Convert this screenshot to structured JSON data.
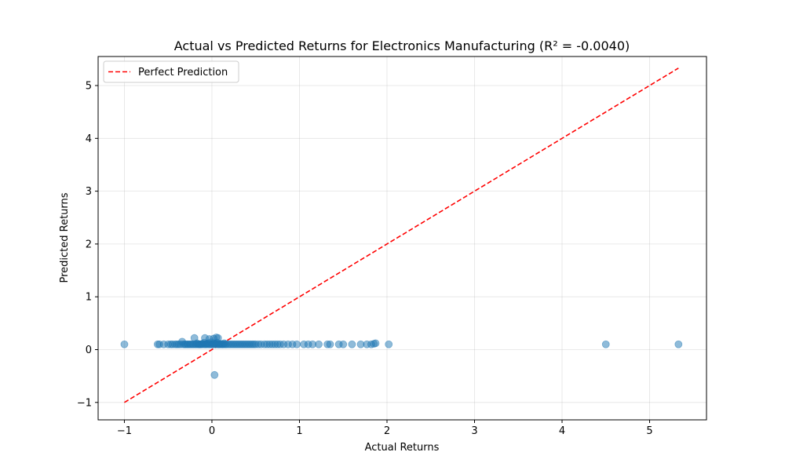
{
  "chart_data": {
    "type": "scatter",
    "title": "Actual vs Predicted Returns for Electronics Manufacturing (R² = -0.0040)",
    "xlabel": "Actual Returns",
    "ylabel": "Predicted Returns",
    "xlim": [
      -1.3,
      5.65
    ],
    "ylim": [
      -1.33,
      5.55
    ],
    "xticks": [
      -1,
      0,
      1,
      2,
      3,
      4,
      5
    ],
    "yticks": [
      -1,
      0,
      1,
      2,
      3,
      4,
      5
    ],
    "xtick_labels": [
      "−1",
      "0",
      "1",
      "2",
      "3",
      "4",
      "5"
    ],
    "ytick_labels": [
      "−1",
      "0",
      "1",
      "2",
      "3",
      "4",
      "5"
    ],
    "grid": true,
    "legend": {
      "position": "top-left",
      "entries": [
        "Perfect Prediction"
      ]
    },
    "reference_line": {
      "name": "Perfect Prediction",
      "style": "dashed",
      "color": "#ff0000",
      "x": [
        -1.0,
        5.33
      ],
      "y": [
        -1.0,
        5.33
      ]
    },
    "series": [
      {
        "marker_color": "#1f77b4",
        "points": [
          [
            -1.0,
            0.1
          ],
          [
            -0.62,
            0.1
          ],
          [
            -0.6,
            0.1
          ],
          [
            -0.55,
            0.1
          ],
          [
            -0.5,
            0.1
          ],
          [
            -0.47,
            0.1
          ],
          [
            -0.45,
            0.1
          ],
          [
            -0.42,
            0.1
          ],
          [
            -0.4,
            0.1
          ],
          [
            -0.38,
            0.1
          ],
          [
            -0.36,
            0.1
          ],
          [
            -0.34,
            0.15
          ],
          [
            -0.33,
            0.1
          ],
          [
            -0.31,
            0.1
          ],
          [
            -0.3,
            0.1
          ],
          [
            -0.28,
            0.1
          ],
          [
            -0.27,
            0.1
          ],
          [
            -0.25,
            0.1
          ],
          [
            -0.24,
            0.1
          ],
          [
            -0.22,
            0.1
          ],
          [
            -0.21,
            0.1
          ],
          [
            -0.2,
            0.22
          ],
          [
            -0.19,
            0.1
          ],
          [
            -0.18,
            0.1
          ],
          [
            -0.17,
            0.12
          ],
          [
            -0.16,
            0.1
          ],
          [
            -0.15,
            0.1
          ],
          [
            -0.14,
            0.1
          ],
          [
            -0.13,
            0.1
          ],
          [
            -0.12,
            0.1
          ],
          [
            -0.11,
            0.11
          ],
          [
            -0.1,
            0.1
          ],
          [
            -0.09,
            0.13
          ],
          [
            -0.08,
            0.1
          ],
          [
            -0.07,
            0.1
          ],
          [
            -0.06,
            0.11
          ],
          [
            -0.05,
            0.1
          ],
          [
            -0.04,
            0.12
          ],
          [
            -0.03,
            0.1
          ],
          [
            -0.02,
            0.1
          ],
          [
            -0.01,
            0.14
          ],
          [
            0.0,
            0.1
          ],
          [
            0.01,
            0.1
          ],
          [
            0.02,
            0.12
          ],
          [
            0.03,
            0.1
          ],
          [
            0.04,
            0.11
          ],
          [
            0.05,
            0.1
          ],
          [
            0.06,
            0.13
          ],
          [
            0.07,
            0.1
          ],
          [
            0.08,
            0.1
          ],
          [
            0.09,
            0.1
          ],
          [
            0.1,
            0.11
          ],
          [
            0.11,
            0.1
          ],
          [
            0.12,
            0.1
          ],
          [
            0.13,
            0.1
          ],
          [
            0.14,
            0.12
          ],
          [
            0.15,
            0.1
          ],
          [
            0.16,
            0.1
          ],
          [
            0.18,
            0.1
          ],
          [
            0.2,
            0.1
          ],
          [
            0.22,
            0.1
          ],
          [
            0.24,
            0.1
          ],
          [
            0.26,
            0.1
          ],
          [
            0.28,
            0.1
          ],
          [
            0.3,
            0.1
          ],
          [
            0.32,
            0.1
          ],
          [
            0.34,
            0.1
          ],
          [
            0.36,
            0.1
          ],
          [
            0.38,
            0.1
          ],
          [
            0.4,
            0.1
          ],
          [
            0.42,
            0.1
          ],
          [
            0.44,
            0.1
          ],
          [
            0.46,
            0.1
          ],
          [
            0.48,
            0.1
          ],
          [
            0.5,
            0.1
          ],
          [
            0.53,
            0.1
          ],
          [
            0.56,
            0.1
          ],
          [
            0.6,
            0.1
          ],
          [
            0.63,
            0.1
          ],
          [
            0.66,
            0.1
          ],
          [
            0.69,
            0.1
          ],
          [
            0.72,
            0.1
          ],
          [
            0.75,
            0.1
          ],
          [
            0.78,
            0.1
          ],
          [
            0.82,
            0.1
          ],
          [
            0.87,
            0.1
          ],
          [
            0.92,
            0.1
          ],
          [
            0.97,
            0.1
          ],
          [
            1.05,
            0.1
          ],
          [
            1.1,
            0.1
          ],
          [
            1.15,
            0.1
          ],
          [
            1.22,
            0.1
          ],
          [
            1.32,
            0.1
          ],
          [
            1.35,
            0.1
          ],
          [
            1.45,
            0.1
          ],
          [
            1.5,
            0.1
          ],
          [
            1.6,
            0.1
          ],
          [
            1.7,
            0.1
          ],
          [
            1.77,
            0.1
          ],
          [
            1.82,
            0.1
          ],
          [
            1.85,
            0.11
          ],
          [
            1.87,
            0.12
          ],
          [
            2.02,
            0.1
          ],
          [
            4.5,
            0.1
          ],
          [
            5.33,
            0.1
          ],
          [
            -0.08,
            0.22
          ],
          [
            -0.03,
            0.2
          ],
          [
            0.02,
            0.21
          ],
          [
            0.05,
            0.23
          ],
          [
            0.07,
            0.22
          ],
          [
            0.03,
            -0.48
          ]
        ]
      }
    ]
  }
}
